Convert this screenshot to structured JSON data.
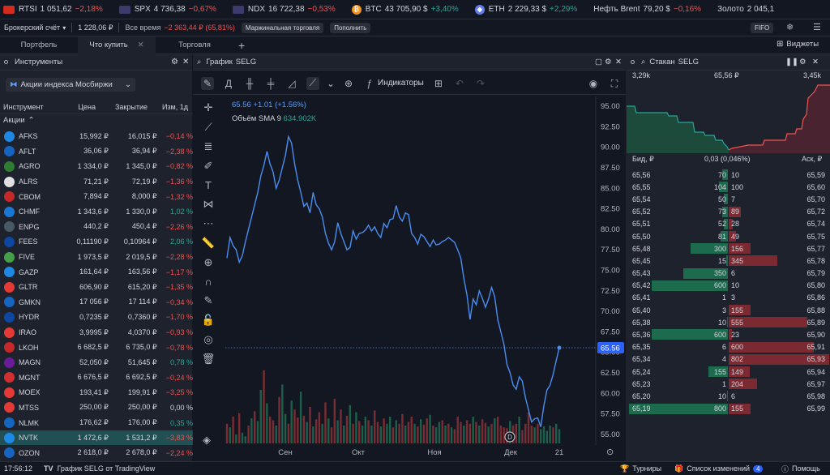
{
  "ticker": [
    {
      "name": "RTSI",
      "price": "1 051,62",
      "chg": "−2,18%",
      "dir": "neg",
      "flag": "#d52b1e"
    },
    {
      "name": "SPX",
      "price": "4 736,38",
      "chg": "−0,67%",
      "dir": "neg",
      "flag": "#3c3b6e"
    },
    {
      "name": "NDX",
      "price": "16 722,38",
      "chg": "−0,53%",
      "dir": "neg",
      "flag": "#3c3b6e"
    },
    {
      "name": "BTC",
      "price": "43 705,90 $",
      "chg": "+3,40%",
      "dir": "pos",
      "flag": "#f7931a"
    },
    {
      "name": "ETH",
      "price": "2 229,33 $",
      "chg": "+2,29%",
      "dir": "pos",
      "flag": "#627eea"
    },
    {
      "name": "Нефть Brent",
      "price": "79,20 $",
      "chg": "−0,16%",
      "dir": "neg",
      "flag": ""
    },
    {
      "name": "Золото",
      "price": "2 045,1",
      "chg": "",
      "dir": "neg",
      "flag": ""
    }
  ],
  "account": {
    "type": "Брокерский счёт",
    "balance": "1 228,06 ₽",
    "period": "Все время",
    "pl": "−2 363,44 ₽ (65,81%)",
    "margin": "Маржинальная торговля",
    "topup": "Пополнить",
    "fifo": "FIFO"
  },
  "tabs": [
    "Портфель",
    "Что купить",
    "Торговля"
  ],
  "widgets": "Виджеты",
  "instruments": {
    "title": "Инструменты",
    "filter": "Акции индекса Мосбиржи",
    "cols": [
      "Инструмент",
      "Цена",
      "Закрытие",
      "Изм, 1д"
    ],
    "group": "Акции",
    "rows": [
      {
        "t": "AFKS",
        "p": "15,992 ₽",
        "c": "16,015 ₽",
        "d": "−0,14 %",
        "dir": "neg",
        "col": "#1e88e5"
      },
      {
        "t": "AFLT",
        "p": "36,06 ₽",
        "c": "36,94 ₽",
        "d": "−2,38 %",
        "dir": "neg",
        "col": "#1565c0"
      },
      {
        "t": "AGRO",
        "p": "1 334,0 ₽",
        "c": "1 345,0 ₽",
        "d": "−0,82 %",
        "dir": "neg",
        "col": "#2e7d32"
      },
      {
        "t": "ALRS",
        "p": "71,21 ₽",
        "c": "72,19 ₽",
        "d": "−1,36 %",
        "dir": "neg",
        "col": "#e0e0e0"
      },
      {
        "t": "CBOM",
        "p": "7,894 ₽",
        "c": "8,000 ₽",
        "d": "−1,32 %",
        "dir": "neg",
        "col": "#c62828"
      },
      {
        "t": "CHMF",
        "p": "1 343,6 ₽",
        "c": "1 330,0 ₽",
        "d": "1,02 %",
        "dir": "pos",
        "col": "#1976d2"
      },
      {
        "t": "ENPG",
        "p": "440,2 ₽",
        "c": "450,4 ₽",
        "d": "−2,26 %",
        "dir": "neg",
        "col": "#455a64"
      },
      {
        "t": "FEES",
        "p": "0,11190 ₽",
        "c": "0,10964 ₽",
        "d": "2,06 %",
        "dir": "pos",
        "col": "#0d47a1"
      },
      {
        "t": "FIVE",
        "p": "1 973,5 ₽",
        "c": "2 019,5 ₽",
        "d": "−2,28 %",
        "dir": "neg",
        "col": "#43a047"
      },
      {
        "t": "GAZP",
        "p": "161,64 ₽",
        "c": "163,56 ₽",
        "d": "−1,17 %",
        "dir": "neg",
        "col": "#1e88e5"
      },
      {
        "t": "GLTR",
        "p": "606,90 ₽",
        "c": "615,20 ₽",
        "d": "−1,35 %",
        "dir": "neg",
        "col": "#e53935"
      },
      {
        "t": "GMKN",
        "p": "17 056 ₽",
        "c": "17 114 ₽",
        "d": "−0,34 %",
        "dir": "neg",
        "col": "#1565c0"
      },
      {
        "t": "HYDR",
        "p": "0,7235 ₽",
        "c": "0,7360 ₽",
        "d": "−1,70 %",
        "dir": "neg",
        "col": "#0d47a1"
      },
      {
        "t": "IRAO",
        "p": "3,9995 ₽",
        "c": "4,0370 ₽",
        "d": "−0,93 %",
        "dir": "neg",
        "col": "#e53935"
      },
      {
        "t": "LKOH",
        "p": "6 682,5 ₽",
        "c": "6 735,0 ₽",
        "d": "−0,78 %",
        "dir": "neg",
        "col": "#c62828"
      },
      {
        "t": "MAGN",
        "p": "52,050 ₽",
        "c": "51,645 ₽",
        "d": "0,78 %",
        "dir": "pos",
        "col": "#6a1b9a"
      },
      {
        "t": "MGNT",
        "p": "6 676,5 ₽",
        "c": "6 692,5 ₽",
        "d": "−0,24 %",
        "dir": "neg",
        "col": "#d32f2f"
      },
      {
        "t": "MOEX",
        "p": "193,41 ₽",
        "c": "199,91 ₽",
        "d": "−3,25 %",
        "dir": "neg",
        "col": "#e53935"
      },
      {
        "t": "MTSS",
        "p": "250,00 ₽",
        "c": "250,00 ₽",
        "d": "0,00 %",
        "dir": "flat",
        "col": "#e53935"
      },
      {
        "t": "NLMK",
        "p": "176,62 ₽",
        "c": "176,00 ₽",
        "d": "0,35 %",
        "dir": "pos",
        "col": "#1565c0"
      },
      {
        "t": "NVTK",
        "p": "1 472,6 ₽",
        "c": "1 531,2 ₽",
        "d": "−3,83 %",
        "dir": "neg",
        "col": "#1e88e5",
        "hl": true
      },
      {
        "t": "OZON",
        "p": "2 618,0 ₽",
        "c": "2 678,0 ₽",
        "d": "−2,24 %",
        "dir": "neg",
        "col": "#1565c0"
      }
    ]
  },
  "chart": {
    "title": "График",
    "symbol": "SELG",
    "interval": "Д",
    "indicators": "Индикаторы",
    "price": "65.56",
    "change": "+1.01 (+1.56%)",
    "volume_label": "Объём SMA 9",
    "volume_val": "634.902K",
    "yticks": [
      "95.00",
      "92.50",
      "90.00",
      "87.50",
      "85.00",
      "82.50",
      "80.00",
      "77.50",
      "75.00",
      "72.50",
      "70.00",
      "67.50",
      "65.00",
      "62.50",
      "60.00",
      "57.50",
      "55.00"
    ],
    "xticks": [
      "Сен",
      "Окт",
      "Ноя",
      "Дек",
      "21"
    ],
    "marker": "D"
  },
  "chart_data": {
    "type": "line",
    "ylim": [
      53.7,
      96.2
    ],
    "series": [
      {
        "values": [
          76.5,
          79,
          78,
          77.5,
          76,
          76.8,
          78.5,
          80,
          81.5,
          83,
          84.5,
          86.5,
          87.8,
          89.5,
          88,
          87,
          85,
          86,
          87.5,
          89,
          91.3,
          90.5,
          88,
          86,
          84.5,
          82.8,
          83.2,
          82,
          84.5,
          83,
          82.5,
          81.5,
          79.5,
          78.3,
          77.5,
          78.5,
          80.8,
          79.5,
          78.5,
          77.5,
          77.8,
          79.8,
          78.8,
          79.5,
          79.6,
          79.9,
          80.5,
          79.8,
          80.3,
          79.5,
          79,
          80.7,
          80.2,
          81.2,
          81.3,
          82.9,
          81.5,
          81,
          82,
          81.8,
          79.5,
          79,
          78.2,
          79.4,
          79.1,
          78.5,
          77.9,
          78.7,
          78.1,
          78.2,
          78.5,
          78.7,
          79,
          78.7,
          78.4,
          77.5,
          76.5,
          74,
          72,
          69,
          71.5,
          70.8,
          72.5,
          71.6,
          70.5,
          71.5,
          72.9,
          71.8,
          69,
          67.5,
          66,
          63.5,
          62.5,
          61,
          60.5,
          62,
          61.5,
          59.5,
          58,
          56.5,
          56.9,
          57,
          55.9,
          58.5,
          60.4,
          61,
          62.3,
          64,
          65.56
        ]
      }
    ],
    "volumes": [
      0.22,
      0.18,
      0.3,
      0.1,
      0.34,
      0.12,
      0.08,
      0.2,
      0.28,
      0.36,
      0.25,
      0.6,
      0.82,
      0.45,
      0.3,
      0.26,
      0.2,
      0.52,
      0.66,
      0.33,
      0.22,
      0.48,
      0.38,
      0.29,
      0.58,
      0.31,
      0.24,
      0.41,
      0.19,
      0.27,
      0.35,
      0.22,
      0.46,
      0.28,
      0.18,
      0.5,
      0.26,
      0.38,
      0.2,
      0.31,
      0.43,
      0.22,
      0.35,
      0.25,
      0.2,
      0.3,
      0.26,
      0.2,
      0.37,
      0.24,
      0.19,
      0.28,
      0.22,
      0.3,
      0.18,
      0.26,
      0.22,
      0.33,
      0.2,
      0.24,
      0.3,
      0.22,
      0.19,
      0.27,
      0.21,
      0.28,
      0.32,
      0.2,
      0.18,
      0.24,
      0.26,
      0.2,
      0.22,
      0.18,
      0.16,
      0.3,
      0.24,
      0.2,
      0.26,
      0.22,
      0.3,
      0.24,
      0.2,
      0.27,
      0.23,
      0.19,
      0.22,
      0.28,
      0.3,
      0.2,
      0.18,
      0.17,
      0.25,
      0.2,
      0.22,
      0.3,
      0.15,
      0.22,
      0.35,
      0.2,
      0.18,
      0.22,
      0.16,
      0.19,
      0.14,
      0.2,
      0.18,
      0.22,
      0.16
    ],
    "vol_up": [
      0,
      1,
      0,
      1,
      0,
      1,
      1,
      0,
      1,
      0,
      1,
      1,
      0,
      1,
      0,
      0,
      1,
      0,
      1,
      1,
      0,
      1,
      0,
      0,
      1,
      0,
      1,
      0,
      1,
      0,
      0,
      1,
      0,
      1,
      0,
      0,
      1,
      0,
      1,
      0,
      1,
      0,
      1,
      0,
      1,
      1,
      0,
      1,
      0,
      0,
      1,
      0,
      1,
      1,
      0,
      1,
      0,
      0,
      1,
      0,
      0,
      1,
      0,
      1,
      0,
      0,
      1,
      0,
      1,
      1,
      0,
      1,
      0,
      1,
      0,
      0,
      0,
      1,
      0,
      0,
      1,
      0,
      1,
      0,
      0,
      1,
      0,
      1,
      0,
      0,
      0,
      0,
      1,
      0,
      0,
      1,
      0,
      0,
      0,
      0,
      1,
      0,
      1,
      1,
      1,
      1,
      0,
      1,
      1
    ]
  },
  "orderbook": {
    "title": "Стакан",
    "symbol": "SELG",
    "left_vol": "3,29k",
    "mid_price": "65,56 ₽",
    "right_vol": "3,45k",
    "col_bid": "Бид, ₽",
    "spread": "0,03 (0,046%)",
    "col_ask": "Аск, ₽",
    "rows": [
      {
        "b": "65,56",
        "bv": "70",
        "av": "10",
        "a": "65,59",
        "bw": 0.06,
        "aw": 0
      },
      {
        "b": "65,55",
        "bv": "104",
        "av": "100",
        "a": "65,60",
        "bw": 0.09,
        "aw": 0
      },
      {
        "b": "65,54",
        "bv": "50",
        "av": "7",
        "a": "65,70",
        "bw": 0.04,
        "aw": 0
      },
      {
        "b": "65,52",
        "bv": "73",
        "av": "89",
        "a": "65,72",
        "bw": 0.06,
        "aw": 0.12
      },
      {
        "b": "65,51",
        "bv": "52",
        "av": "28",
        "a": "65,74",
        "bw": 0.04,
        "aw": 0.04
      },
      {
        "b": "65,50",
        "bv": "81",
        "av": "49",
        "a": "65,75",
        "bw": 0.07,
        "aw": 0.07
      },
      {
        "b": "65,48",
        "bv": "300",
        "av": "156",
        "a": "65,77",
        "bw": 0.38,
        "aw": 0.22
      },
      {
        "b": "65,45",
        "bv": "15",
        "av": "345",
        "a": "65,78",
        "bw": 0.02,
        "aw": 0.48
      },
      {
        "b": "65,43",
        "bv": "350",
        "av": "6",
        "a": "65,79",
        "bw": 0.45,
        "aw": 0
      },
      {
        "b": "65,42",
        "bv": "600",
        "av": "10",
        "a": "65,80",
        "bw": 0.77,
        "aw": 0
      },
      {
        "b": "65,41",
        "bv": "1",
        "av": "3",
        "a": "65,86",
        "bw": 0,
        "aw": 0
      },
      {
        "b": "65,40",
        "bv": "3",
        "av": "155",
        "a": "65,88",
        "bw": 0,
        "aw": 0.22
      },
      {
        "b": "65,38",
        "bv": "10",
        "av": "555",
        "a": "65,89",
        "bw": 0.01,
        "aw": 0.78
      },
      {
        "b": "65,36",
        "bv": "600",
        "av": "23",
        "a": "65,90",
        "bw": 0.77,
        "aw": 0.03
      },
      {
        "b": "65,35",
        "bv": "6",
        "av": "600",
        "a": "65,91",
        "bw": 0,
        "aw": 0.85
      },
      {
        "b": "65,34",
        "bv": "4",
        "av": "802",
        "a": "65,93",
        "bw": 0,
        "aw": 1
      },
      {
        "b": "65,24",
        "bv": "155",
        "av": "149",
        "a": "65,94",
        "bw": 0.2,
        "aw": 0.21
      },
      {
        "b": "65,23",
        "bv": "1",
        "av": "204",
        "a": "65,97",
        "bw": 0,
        "aw": 0.28
      },
      {
        "b": "65,20",
        "bv": "10",
        "av": "6",
        "a": "65,98",
        "bw": 0.01,
        "aw": 0
      },
      {
        "b": "65,19",
        "bv": "800",
        "av": "155",
        "a": "65,99",
        "bw": 1,
        "aw": 0.22
      }
    ]
  },
  "status": {
    "time": "17:56:12",
    "chart_credit": "График SELG от TradingView",
    "tournaments": "Турниры",
    "changes": "Список изменений",
    "changes_count": "4",
    "help": "Помощь"
  }
}
